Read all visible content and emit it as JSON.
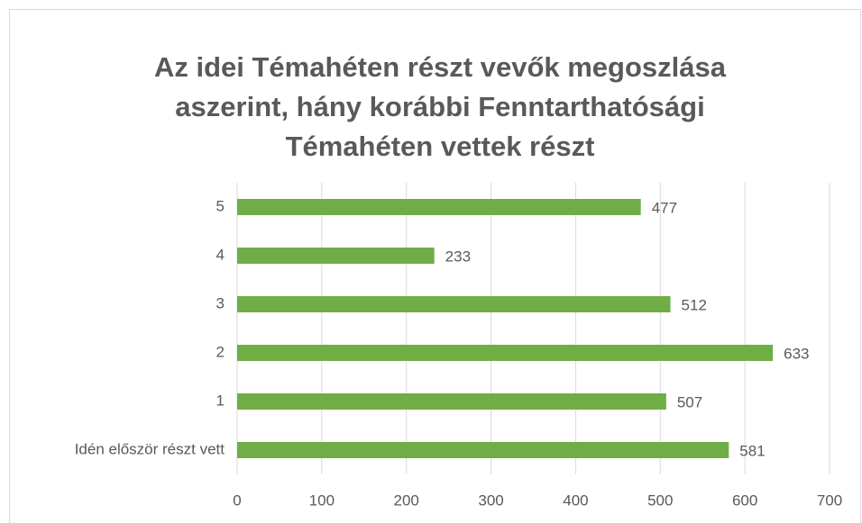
{
  "chart_data": {
    "type": "bar",
    "orientation": "horizontal",
    "title": [
      "Az idei Témahéten részt vevők megoszlása",
      "aszerint, hány korábbi Fenntarthatósági",
      "Témahéten vettek részt"
    ],
    "categories": [
      "Idén először részt vett",
      "1",
      "2",
      "3",
      "4",
      "5"
    ],
    "values": [
      581,
      507,
      633,
      512,
      233,
      477
    ],
    "color": "#70ad47",
    "xlim": [
      0,
      700
    ],
    "xticks": [
      0,
      100,
      200,
      300,
      400,
      500,
      600,
      700
    ],
    "grid": true
  }
}
